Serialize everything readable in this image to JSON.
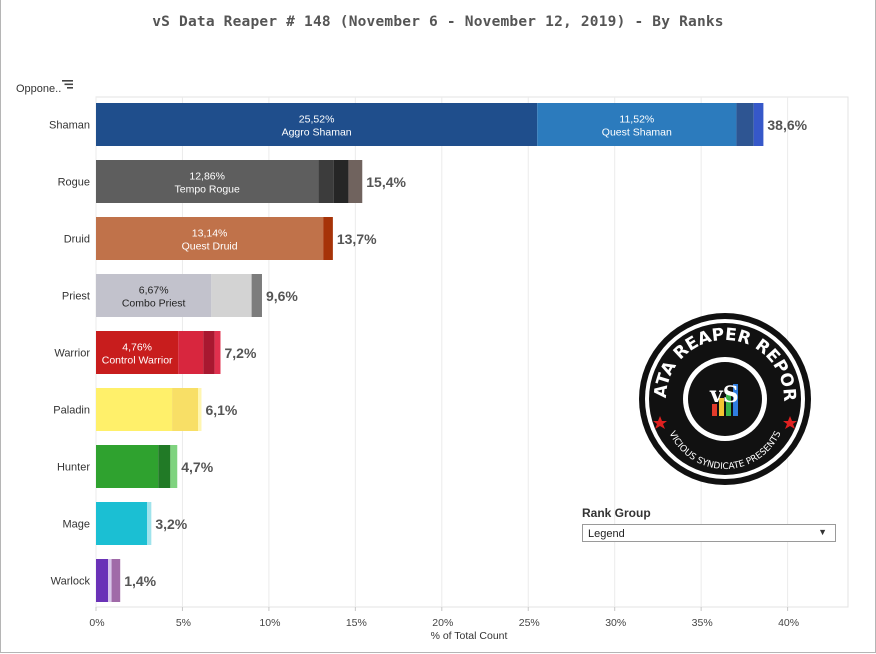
{
  "page": {
    "title": "vS Data Reaper #  148 (November 6 - November 12, 2019) - By Ranks",
    "dim_header": "Oppone..",
    "sort_icon": "sort-descending-icon",
    "logo": {
      "icon": "data-reaper-report-logo",
      "text_top": "DATA REAPER REPORT",
      "text_bottom": "VICIOUS SYNDICATE PRESENTS"
    },
    "rank_filter": {
      "title": "Rank Group",
      "value": "Legend",
      "icon": "chevron-down-icon"
    }
  },
  "chart_data": {
    "type": "bar",
    "orientation": "horizontal",
    "stacked": true,
    "xlabel": "% of Total Count",
    "ylabel": "",
    "xlim": [
      0,
      42
    ],
    "x_ticks": [
      "0%",
      "5%",
      "10%",
      "15%",
      "20%",
      "25%",
      "30%",
      "35%",
      "40%"
    ],
    "grid": true,
    "categories": [
      "Shaman",
      "Rogue",
      "Druid",
      "Priest",
      "Warrior",
      "Paladin",
      "Hunter",
      "Mage",
      "Warlock"
    ],
    "totals": [
      38.6,
      15.4,
      13.7,
      9.6,
      7.2,
      6.1,
      4.7,
      3.2,
      1.4
    ],
    "total_labels": [
      "38,6%",
      "15,4%",
      "13,7%",
      "9,6%",
      "7,2%",
      "6,1%",
      "4,7%",
      "3,2%",
      "1,4%"
    ],
    "bars": [
      {
        "category": "Shaman",
        "segments": [
          {
            "value": 25.52,
            "color": "#1f4e8c",
            "label": "25,52%",
            "name": "Aggro Shaman",
            "text_color": "#ffffff"
          },
          {
            "value": 11.52,
            "color": "#2c7bbd",
            "label": "11,52%",
            "name": "Quest Shaman",
            "text_color": "#ffffff"
          },
          {
            "value": 1.0,
            "color": "#2e5592"
          },
          {
            "value": 0.56,
            "color": "#3658c9"
          }
        ]
      },
      {
        "category": "Rogue",
        "segments": [
          {
            "value": 12.86,
            "color": "#5e5e5e",
            "label": "12,86%",
            "name": "Tempo Rogue",
            "text_color": "#ffffff"
          },
          {
            "value": 0.9,
            "color": "#3c3c3c"
          },
          {
            "value": 0.84,
            "color": "#262626"
          },
          {
            "value": 0.8,
            "color": "#70635e"
          }
        ]
      },
      {
        "category": "Druid",
        "segments": [
          {
            "value": 13.14,
            "color": "#c0724a",
            "label": "13,14%",
            "name": "Quest Druid",
            "text_color": "#ffffff"
          },
          {
            "value": 0.56,
            "color": "#a63308"
          }
        ]
      },
      {
        "category": "Priest",
        "segments": [
          {
            "value": 6.67,
            "color": "#c2c2cc",
            "label": "6,67%",
            "name": "Combo Priest",
            "text_color": "#222222"
          },
          {
            "value": 2.33,
            "color": "#d3d3d3"
          },
          {
            "value": 0.6,
            "color": "#7c7c7c"
          }
        ]
      },
      {
        "category": "Warrior",
        "segments": [
          {
            "value": 4.76,
            "color": "#c81d1d",
            "label": "4,76%",
            "name": "Control Warrior",
            "text_color": "#ffffff"
          },
          {
            "value": 1.45,
            "color": "#d8263e"
          },
          {
            "value": 0.65,
            "color": "#a81830"
          },
          {
            "value": 0.34,
            "color": "#e0304e"
          }
        ]
      },
      {
        "category": "Paladin",
        "segments": [
          {
            "value": 4.4,
            "color": "#fff06a"
          },
          {
            "value": 1.5,
            "color": "#f8df66"
          },
          {
            "value": 0.2,
            "color": "#fff6b0"
          }
        ]
      },
      {
        "category": "Hunter",
        "segments": [
          {
            "value": 3.6,
            "color": "#2fa22f"
          },
          {
            "value": 0.7,
            "color": "#217a26"
          },
          {
            "value": 0.4,
            "color": "#7fd37f"
          }
        ]
      },
      {
        "category": "Mage",
        "segments": [
          {
            "value": 2.95,
            "color": "#1bbfd3"
          },
          {
            "value": 0.25,
            "color": "#9fe3ec"
          }
        ]
      },
      {
        "category": "Warlock",
        "segments": [
          {
            "value": 0.7,
            "color": "#6a32b7"
          },
          {
            "value": 0.2,
            "color": "#d9c7ea"
          },
          {
            "value": 0.5,
            "color": "#a06aa8"
          }
        ]
      }
    ]
  }
}
